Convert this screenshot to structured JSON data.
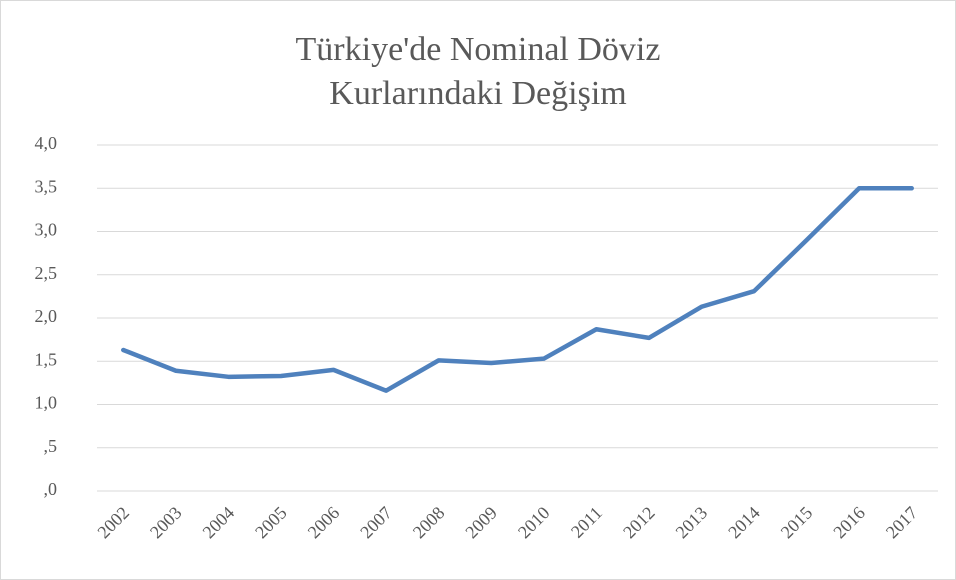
{
  "chart_data": {
    "type": "line",
    "title": "Türkiye'de Nominal Döviz Kurlarındaki Değişim",
    "categories": [
      "2002",
      "2003",
      "2004",
      "2005",
      "2006",
      "2007",
      "2008",
      "2009",
      "2010",
      "2011",
      "2012",
      "2013",
      "2014",
      "2015",
      "2016",
      "2017"
    ],
    "series": [
      {
        "name": null,
        "color": "#4f81bd",
        "values": [
          1.63,
          1.39,
          1.32,
          1.33,
          1.4,
          1.16,
          1.51,
          1.48,
          1.53,
          1.87,
          1.77,
          2.13,
          2.31,
          2.9,
          3.5,
          3.5
        ]
      }
    ],
    "ylim": [
      0,
      4
    ],
    "yticks": [
      {
        "value": 0,
        "label": ",0"
      },
      {
        "value": 0.5,
        "label": ",5"
      },
      {
        "value": 1,
        "label": "1,0"
      },
      {
        "value": 1.5,
        "label": "1,5"
      },
      {
        "value": 2,
        "label": "2,0"
      },
      {
        "value": 2.5,
        "label": "2,5"
      },
      {
        "value": 3,
        "label": "3,0"
      },
      {
        "value": 3.5,
        "label": "3,5"
      },
      {
        "value": 4,
        "label": "4,0"
      }
    ],
    "grid": true
  }
}
